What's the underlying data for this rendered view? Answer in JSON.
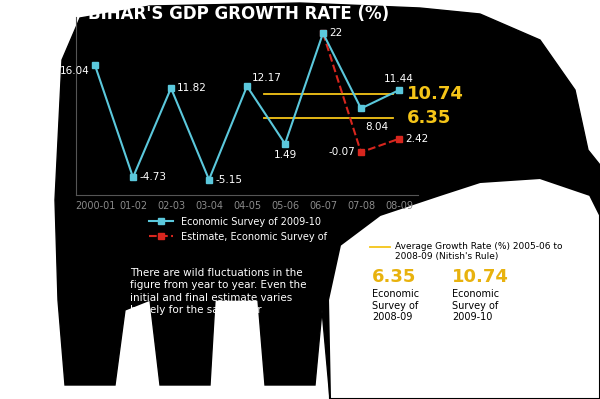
{
  "chart_data": {
    "type": "line",
    "title": "BIHAR'S GDP GROWTH RATE (%)",
    "categories": [
      "2000-01",
      "01-02",
      "02-03",
      "03-04",
      "04-05",
      "05-06",
      "06-07",
      "07-08",
      "08-09"
    ],
    "series": [
      {
        "name": "Economic Survey of 2009-10",
        "color": "#5bc8dc",
        "marker": "square",
        "line_style": "solid",
        "values": [
          16.04,
          -4.73,
          11.82,
          -5.15,
          12.17,
          1.49,
          22,
          8.04,
          11.44
        ]
      },
      {
        "name": "Estimate, Economic Survey of",
        "color": "#d7261e",
        "marker": "square",
        "line_style": "dashed",
        "values": [
          null,
          null,
          null,
          null,
          null,
          null,
          22,
          -0.07,
          2.42
        ],
        "value_labels": [
          null,
          null,
          null,
          null,
          null,
          null,
          null,
          "-0.07",
          "2.42"
        ]
      }
    ],
    "ylim": [
      -8,
      25
    ],
    "yticks": [],
    "tick_labels": "x",
    "data_labels": true,
    "legend": "upper left",
    "reference_lines": {
      "title": "Average Growth Rate (%) 2005-06 to 2008-09 (Nitish's Rule)",
      "color": "#f5c518",
      "start": "05-06",
      "end": "08-09",
      "lines": [
        {
          "value": 6.35,
          "label": "6.35",
          "source": "Economic Survey of 2008-09"
        },
        {
          "value": 10.74,
          "label": "10.74",
          "source": "Economic Survey of 2009-10"
        }
      ]
    },
    "note": "There are wild fluctuations in the figure from year to year. Even the initial and final estimate varies hugely for the same year"
  }
}
